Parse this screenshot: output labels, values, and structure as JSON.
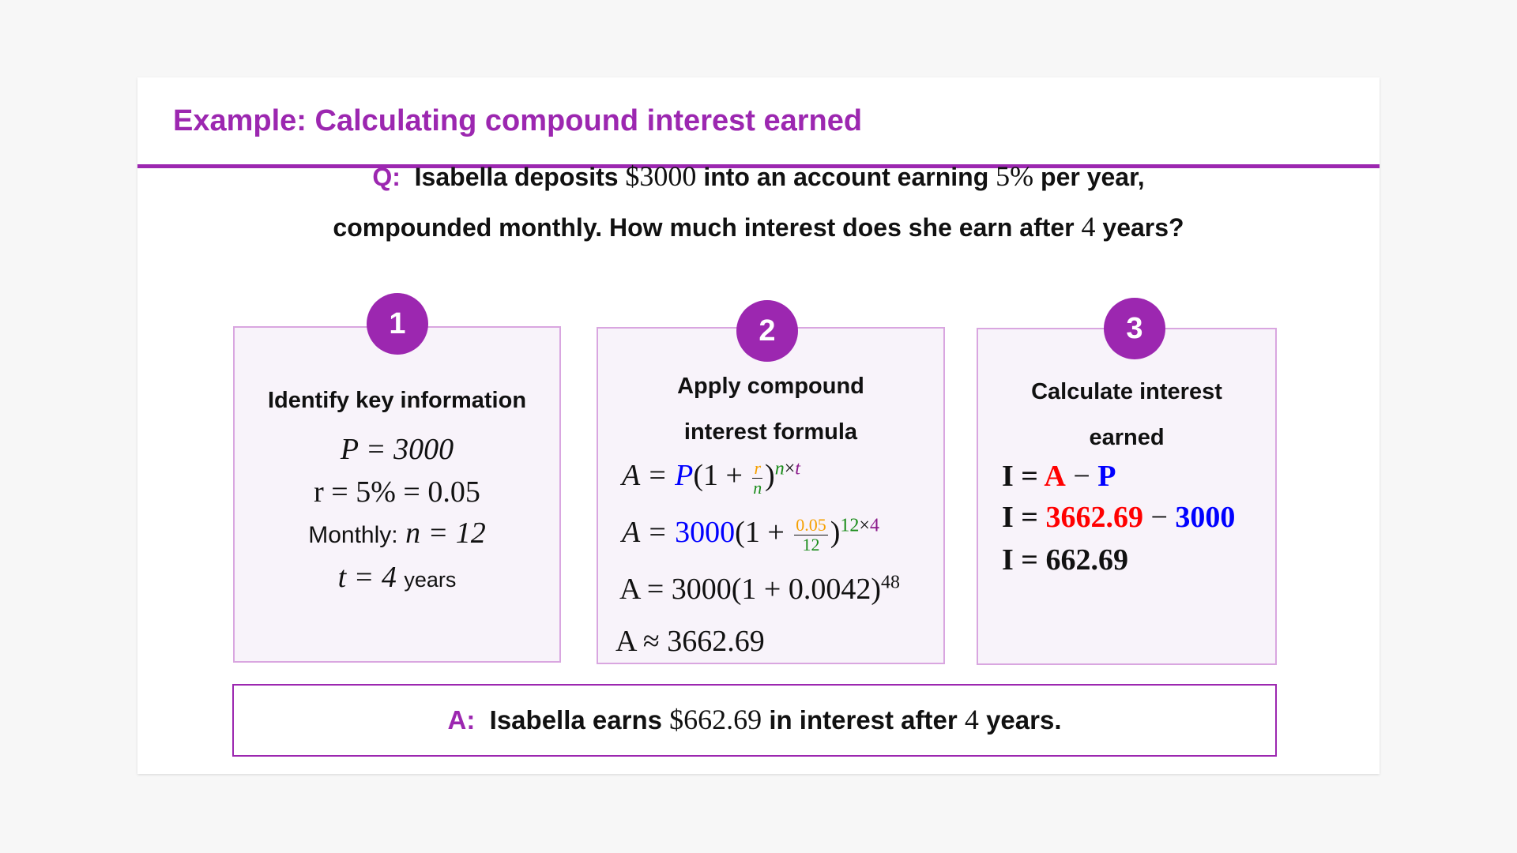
{
  "title": "Example: Calculating compound interest earned",
  "question": {
    "label": "Q:",
    "line1_a": "Isabella deposits",
    "amount": "$3000",
    "line1_b": "into an account earning",
    "rate": "5%",
    "line1_c": "per year,",
    "line2_a": "compounded monthly. How much interest does she earn after",
    "years": "4",
    "line2_b": "years?"
  },
  "steps": [
    {
      "number": "1",
      "heading": "Identify key information",
      "lines": [
        "P = 3000",
        "r = 5% = 0.05",
        "Monthly:",
        "n = 12",
        "t = 4",
        "years"
      ]
    },
    {
      "number": "2",
      "heading_1": "Apply compound",
      "heading_2": "interest formula",
      "lines": [
        "A = ",
        "P",
        "(1 + ",
        "r",
        "n",
        ")",
        "n",
        "×",
        "t",
        "3000",
        "0.05",
        "12",
        "12",
        "×",
        "4",
        "A = 3000(1 + 0.0042)",
        "48",
        "A ≈ 3662.69"
      ]
    },
    {
      "number": "3",
      "heading_1": "Calculate interest",
      "heading_2": "earned",
      "lines": [
        "I = ",
        "A",
        " − ",
        "P",
        "3662.69",
        "3000",
        "I = 662.69"
      ]
    }
  ],
  "answer": {
    "label": "A:",
    "text_a": "Isabella earns",
    "amount": "$662.69",
    "text_b": "in interest after",
    "years": "4",
    "text_c": "years."
  },
  "colors": {
    "accent": "#9c27b0",
    "box_bg": "#f8f3fa",
    "box_border": "#d9a6e0",
    "principal": "#0000ff",
    "amount": "#ff0000",
    "rate": "#f5a000",
    "n": "#1a8c1a",
    "t": "#8b1a8b"
  }
}
